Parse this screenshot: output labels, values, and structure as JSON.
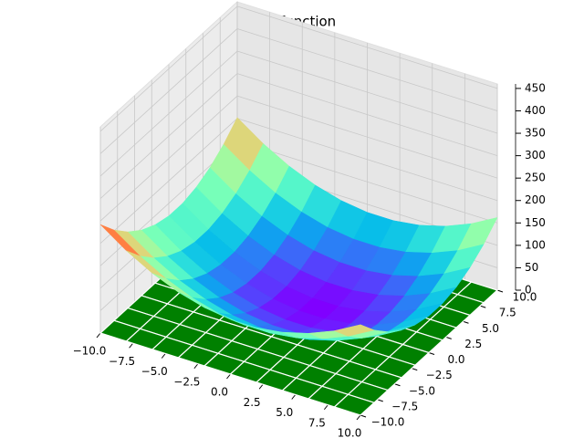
{
  "chart_data": {
    "type": "surface",
    "title": "Levi function",
    "x": [
      -10,
      -8,
      -6,
      -4,
      -2,
      0,
      2,
      4,
      6,
      8,
      10
    ],
    "y": [
      -10,
      -8,
      -6,
      -4,
      -2,
      0,
      2,
      4,
      6,
      8,
      10
    ],
    "z": [
      [
        242,
        202,
        170,
        146,
        130,
        122,
        122,
        130,
        146,
        170,
        202
      ],
      [
        202,
        162,
        130,
        106,
        90,
        82,
        82,
        90,
        106,
        130,
        162
      ],
      [
        170,
        130,
        98,
        74,
        58,
        50,
        50,
        58,
        74,
        98,
        130
      ],
      [
        146,
        106,
        74,
        50,
        34,
        26,
        26,
        34,
        50,
        74,
        106
      ],
      [
        130,
        90,
        58,
        34,
        18,
        10,
        10,
        18,
        34,
        58,
        90
      ],
      [
        122,
        82,
        50,
        26,
        10,
        2,
        2,
        10,
        26,
        50,
        82
      ],
      [
        122,
        82,
        50,
        26,
        10,
        2,
        2,
        10,
        26,
        50,
        82
      ],
      [
        130,
        90,
        58,
        34,
        18,
        10,
        10,
        18,
        34,
        58,
        90
      ],
      [
        146,
        106,
        74,
        50,
        34,
        26,
        26,
        34,
        50,
        74,
        106
      ],
      [
        170,
        130,
        98,
        74,
        58,
        50,
        50,
        58,
        74,
        98,
        130
      ],
      [
        202,
        162,
        130,
        106,
        90,
        82,
        82,
        90,
        106,
        130,
        162
      ]
    ],
    "colormap": "rainbow",
    "contour_color": "#008000",
    "xlim": [
      -10,
      10
    ],
    "ylim": [
      -10,
      10
    ],
    "zlim": [
      0,
      460
    ],
    "xticks": [
      {
        "value": -10,
        "label": "−10.0"
      },
      {
        "value": -7.5,
        "label": "−7.5"
      },
      {
        "value": -5,
        "label": "−5.0"
      },
      {
        "value": -2.5,
        "label": "−2.5"
      },
      {
        "value": 0,
        "label": "0.0"
      },
      {
        "value": 2.5,
        "label": "2.5"
      },
      {
        "value": 5,
        "label": "5.0"
      },
      {
        "value": 7.5,
        "label": "7.5"
      },
      {
        "value": 10,
        "label": "10.0"
      }
    ],
    "yticks": [
      {
        "value": -10,
        "label": "−10.0"
      },
      {
        "value": -7.5,
        "label": "−7.5"
      },
      {
        "value": -5,
        "label": "−5.0"
      },
      {
        "value": -2.5,
        "label": "−2.5"
      },
      {
        "value": 0,
        "label": "0.0"
      },
      {
        "value": 2.5,
        "label": "2.5"
      },
      {
        "value": 5,
        "label": "5.0"
      },
      {
        "value": 7.5,
        "label": "7.5"
      },
      {
        "value": 10,
        "label": "10.0"
      }
    ],
    "zticks": [
      0,
      50,
      100,
      150,
      200,
      250,
      300,
      350,
      400,
      450
    ],
    "grid": true
  }
}
